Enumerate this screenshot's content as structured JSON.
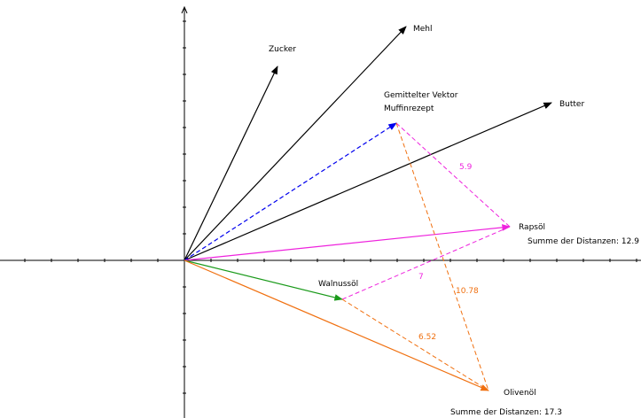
{
  "vectors": {
    "zucker": "Zucker",
    "mehl": "Mehl",
    "butter": "Butter",
    "mean_line1": "Gemittelter Vektor",
    "mean_line2": "Muffinrezept",
    "rapsoel": "Rapsöl",
    "walnussoel": "Walnussöl",
    "olivenoel": "Olivenöl"
  },
  "distances": {
    "mean_to_rapsoel": "5.9",
    "walnussoel_to_rapsoel": "7",
    "mean_to_olivenoel": "10.78",
    "walnussoel_to_olivenoel": "6.52"
  },
  "sums": {
    "rapsoel": "Summe der Distanzen: 12.9",
    "olivenoel": "Summe der Distanzen: 17.3"
  },
  "colors": {
    "axis": "#000000",
    "ingredient": "#000000",
    "mean": "#0000ee",
    "rapsoel": "#ee22dd",
    "walnussoel": "#1a9a1a",
    "olivenoel": "#f07010"
  }
}
